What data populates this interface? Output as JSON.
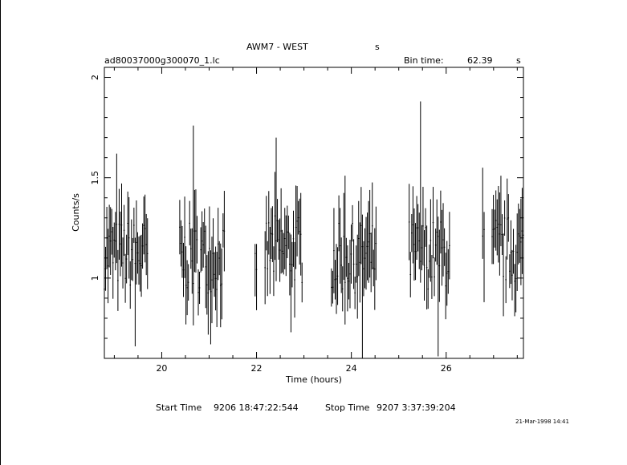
{
  "header": {
    "title": "AWM7 - WEST",
    "title_suffix": "s",
    "filename": "ad80037000g300070_1.lc",
    "bin_label": "Bin time:",
    "bin_value": "62.39",
    "bin_unit": "s"
  },
  "footer": {
    "start_label": "Start Time",
    "start_value": "9206  18:47:22:544",
    "stop_label": "Stop Time",
    "stop_value": "9207   3:37:39:204",
    "timestamp": "21-Mar-1998 14:41"
  },
  "chart_data": {
    "type": "scatter",
    "style": "error-bar light curve",
    "xlabel": "Time (hours)",
    "ylabel": "Counts/s",
    "xlim": [
      18.79,
      27.63
    ],
    "ylim": [
      0.6,
      2.05
    ],
    "x_ticks": [
      20,
      22,
      24,
      26
    ],
    "y_ticks": [
      1,
      1.5,
      2
    ],
    "x_tick_labels": [
      "20",
      "22",
      "24",
      "26"
    ],
    "y_tick_labels": [
      "1",
      "1.5",
      "2"
    ],
    "grid": false,
    "data_segments": [
      {
        "x_start": 18.79,
        "x_end": 19.7,
        "mean": 1.12,
        "low": 0.66,
        "high": 1.62
      },
      {
        "x_start": 20.38,
        "x_end": 21.32,
        "mean": 1.1,
        "low": 0.67,
        "high": 1.76
      },
      {
        "x_start": 21.97,
        "x_end": 22.0,
        "mean": 0.95,
        "low": 0.84,
        "high": 1.17
      },
      {
        "x_start": 22.18,
        "x_end": 22.96,
        "mean": 1.14,
        "low": 0.73,
        "high": 1.7
      },
      {
        "x_start": 23.58,
        "x_end": 24.52,
        "mean": 1.1,
        "low": 0.6,
        "high": 1.51
      },
      {
        "x_start": 25.22,
        "x_end": 26.07,
        "mean": 1.12,
        "low": 0.61,
        "high": 1.88
      },
      {
        "x_start": 26.77,
        "x_end": 26.8,
        "mean": 1.1,
        "low": 0.88,
        "high": 1.55
      },
      {
        "x_start": 26.97,
        "x_end": 27.63,
        "mean": 1.14,
        "low": 0.81,
        "high": 1.51
      }
    ]
  }
}
